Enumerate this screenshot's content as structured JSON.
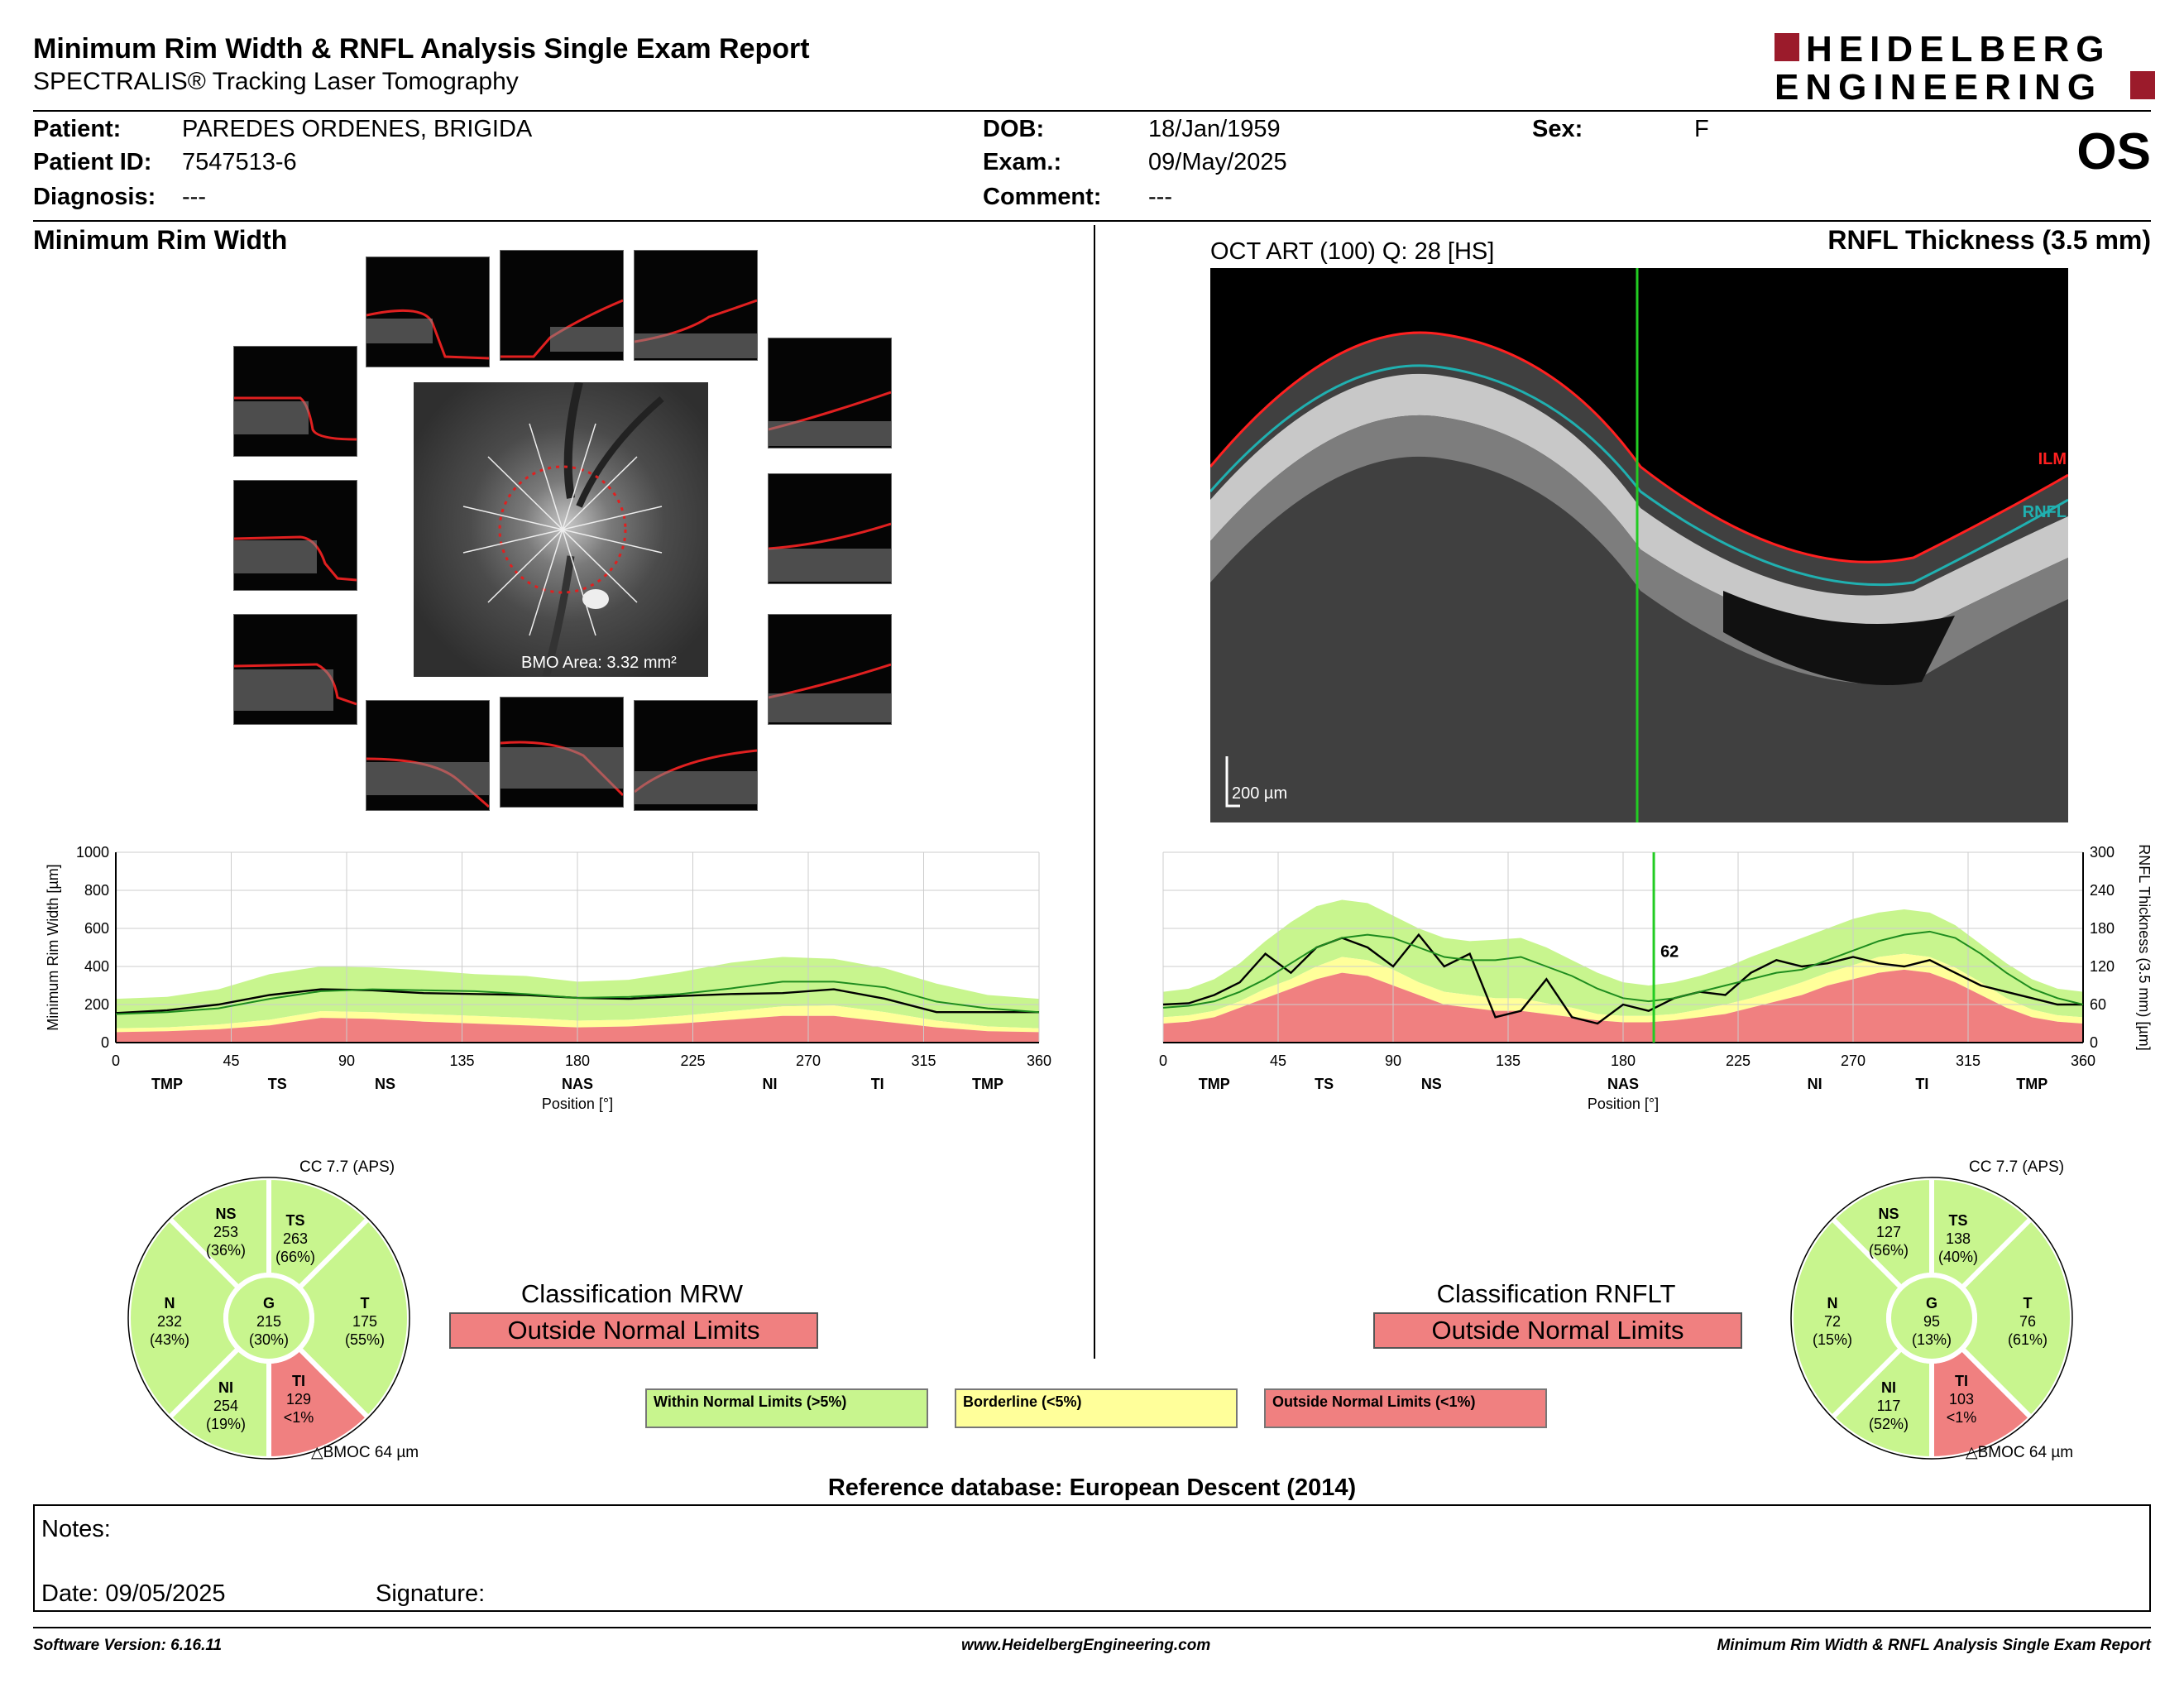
{
  "header": {
    "title": "Minimum Rim Width & RNFL Analysis Single Exam Report",
    "subtitle": "SPECTRALIS® Tracking Laser Tomography",
    "logo_line1": "HEIDELBERG",
    "logo_line2": "ENGINEERING",
    "eye": "OS"
  },
  "patient": {
    "patient_label": "Patient:",
    "patient_value": "PAREDES ORDENES, BRIGIDA",
    "id_label": "Patient ID:",
    "id_value": "7547513-6",
    "diag_label": "Diagnosis:",
    "diag_value": "---",
    "dob_label": "DOB:",
    "dob_value": "18/Jan/1959",
    "exam_label": "Exam.:",
    "exam_value": "09/May/2025",
    "comment_label": "Comment:",
    "comment_value": "---",
    "sex_label": "Sex:",
    "sex_value": "F"
  },
  "mrw": {
    "section_title": "Minimum Rim Width",
    "bmo_area": "BMO Area: 3.32 mm²",
    "classification_title": "Classification MRW",
    "classification_value": "Outside Normal Limits",
    "cc_label": "CC 7.7 (APS)",
    "bmoc_label": "BMOC 64 µm",
    "sectors": {
      "NS": {
        "name": "NS",
        "value": "253",
        "pct": "(36%)"
      },
      "TS": {
        "name": "TS",
        "value": "263",
        "pct": "(66%)"
      },
      "N": {
        "name": "N",
        "value": "232",
        "pct": "(43%)"
      },
      "G": {
        "name": "G",
        "value": "215",
        "pct": "(30%)"
      },
      "T": {
        "name": "T",
        "value": "175",
        "pct": "(55%)"
      },
      "NI": {
        "name": "NI",
        "value": "254",
        "pct": "(19%)"
      },
      "TI": {
        "name": "TI",
        "value": "129",
        "pct": "<1%"
      }
    }
  },
  "rnfl": {
    "section_title": "RNFL Thickness (3.5 mm)",
    "scan_info": "OCT ART (100) Q: 28 [HS]",
    "ilm_label": "ILM",
    "rnfl_label": "RNFL",
    "scale_label": "200 µm",
    "classification_title": "Classification RNFLT",
    "classification_value": "Outside Normal Limits",
    "cc_label": "CC 7.7 (APS)",
    "bmoc_label": "BMOC 64 µm",
    "sectors": {
      "NS": {
        "name": "NS",
        "value": "127",
        "pct": "(56%)"
      },
      "TS": {
        "name": "TS",
        "value": "138",
        "pct": "(40%)"
      },
      "N": {
        "name": "N",
        "value": "72",
        "pct": "(15%)"
      },
      "G": {
        "name": "G",
        "value": "95",
        "pct": "(13%)"
      },
      "T": {
        "name": "T",
        "value": "76",
        "pct": "(61%)"
      },
      "NI": {
        "name": "NI",
        "value": "117",
        "pct": "(52%)"
      },
      "TI": {
        "name": "TI",
        "value": "103",
        "pct": "<1%"
      }
    }
  },
  "legend": {
    "within": "Within Normal Limits (>5%)",
    "borderline": "Borderline (<5%)",
    "outside": "Outside Normal Limits (<1%)"
  },
  "reference_db": "Reference database: European Descent (2014)",
  "notes": {
    "notes_label": "Notes:",
    "date_label": "Date: 09/05/2025",
    "signature_label": "Signature:"
  },
  "footer": {
    "software": "Software Version: 6.16.11",
    "website": "www.HeidelbergEngineering.com",
    "report": "Minimum Rim Width & RNFL Analysis Single Exam Report"
  },
  "colors": {
    "green": "#c8f58e",
    "yellow": "#ffff9a",
    "red": "#f08080",
    "ilm": "#ff2020",
    "rnfl": "#20b0b0",
    "marker": "#22cc22",
    "logo": "#9b1b2b"
  },
  "chart_data": [
    {
      "type": "line",
      "xlabel": "Position [°]",
      "ylabel": "Minimum Rim Width [µm]",
      "xlim": [
        0,
        360
      ],
      "ylim": [
        0,
        1000
      ],
      "xticks": [
        0,
        45,
        90,
        135,
        180,
        225,
        270,
        315,
        360
      ],
      "yticks": [
        0,
        200,
        400,
        600,
        800,
        1000
      ],
      "sector_labels": [
        "TMP",
        "TS",
        "NS",
        "NAS",
        "NI",
        "TI",
        "TMP"
      ],
      "sector_positions": [
        20,
        63,
        105,
        180,
        255,
        297,
        340
      ],
      "x": [
        0,
        20,
        40,
        60,
        80,
        100,
        120,
        140,
        160,
        180,
        200,
        220,
        240,
        260,
        280,
        300,
        320,
        340,
        360
      ],
      "series": [
        {
          "values": [
            155,
            170,
            200,
            250,
            280,
            275,
            260,
            255,
            250,
            235,
            230,
            245,
            255,
            260,
            280,
            230,
            160,
            160,
            160
          ]
        },
        {
          "values": [
            150,
            160,
            180,
            230,
            270,
            280,
            275,
            270,
            255,
            235,
            240,
            255,
            285,
            320,
            320,
            290,
            215,
            180,
            160
          ]
        }
      ],
      "band_p1": [
        55,
        60,
        70,
        90,
        130,
        125,
        110,
        100,
        90,
        80,
        85,
        100,
        120,
        140,
        140,
        110,
        80,
        60,
        55
      ],
      "band_p5": [
        75,
        80,
        95,
        120,
        165,
        160,
        150,
        140,
        130,
        115,
        120,
        140,
        165,
        190,
        195,
        160,
        115,
        85,
        75
      ],
      "band_p95": [
        230,
        240,
        280,
        360,
        400,
        395,
        380,
        360,
        350,
        320,
        330,
        370,
        420,
        450,
        440,
        390,
        310,
        250,
        230
      ]
    },
    {
      "type": "line",
      "xlabel": "Position [°]",
      "ylabel": "RNFL Thickness (3.5 mm) [µm]",
      "xlim": [
        0,
        360
      ],
      "ylim": [
        0,
        300
      ],
      "xticks": [
        0,
        45,
        90,
        135,
        180,
        225,
        270,
        315,
        360
      ],
      "yticks": [
        0,
        60,
        120,
        180,
        240,
        300
      ],
      "sector_labels": [
        "TMP",
        "TS",
        "NS",
        "NAS",
        "NI",
        "TI",
        "TMP"
      ],
      "sector_positions": [
        20,
        63,
        105,
        180,
        255,
        297,
        340
      ],
      "marker_position": 192,
      "marker_value": "62",
      "x": [
        0,
        10,
        20,
        30,
        40,
        50,
        60,
        70,
        80,
        90,
        100,
        110,
        120,
        130,
        140,
        150,
        160,
        170,
        180,
        190,
        200,
        210,
        220,
        230,
        240,
        250,
        260,
        270,
        280,
        290,
        300,
        310,
        320,
        330,
        340,
        350,
        360
      ],
      "series": [
        {
          "values": [
            60,
            62,
            75,
            95,
            140,
            110,
            150,
            165,
            150,
            120,
            170,
            120,
            140,
            40,
            50,
            100,
            40,
            30,
            60,
            50,
            70,
            80,
            75,
            110,
            130,
            120,
            125,
            135,
            125,
            120,
            130,
            110,
            90,
            80,
            70,
            60,
            60
          ]
        },
        {
          "values": [
            55,
            58,
            65,
            80,
            100,
            125,
            150,
            165,
            170,
            165,
            150,
            135,
            130,
            130,
            135,
            120,
            105,
            85,
            70,
            65,
            70,
            80,
            90,
            100,
            110,
            115,
            130,
            145,
            160,
            170,
            175,
            165,
            140,
            110,
            85,
            70,
            60
          ]
        }
      ],
      "band_p1": [
        30,
        33,
        40,
        55,
        70,
        85,
        100,
        110,
        105,
        90,
        75,
        60,
        55,
        50,
        50,
        45,
        40,
        35,
        32,
        32,
        35,
        40,
        45,
        55,
        65,
        75,
        90,
        100,
        110,
        115,
        110,
        95,
        75,
        55,
        40,
        33,
        30
      ],
      "band_p5": [
        40,
        43,
        50,
        65,
        85,
        100,
        120,
        135,
        130,
        115,
        95,
        80,
        75,
        70,
        70,
        62,
        55,
        45,
        42,
        42,
        45,
        52,
        60,
        70,
        82,
        95,
        110,
        122,
        135,
        140,
        135,
        118,
        95,
        70,
        52,
        43,
        40
      ],
      "band_p95": [
        80,
        85,
        100,
        125,
        160,
        190,
        215,
        225,
        220,
        200,
        180,
        165,
        160,
        162,
        165,
        150,
        130,
        110,
        95,
        90,
        95,
        105,
        118,
        135,
        150,
        165,
        180,
        195,
        205,
        210,
        205,
        185,
        155,
        125,
        100,
        85,
        80
      ]
    }
  ]
}
